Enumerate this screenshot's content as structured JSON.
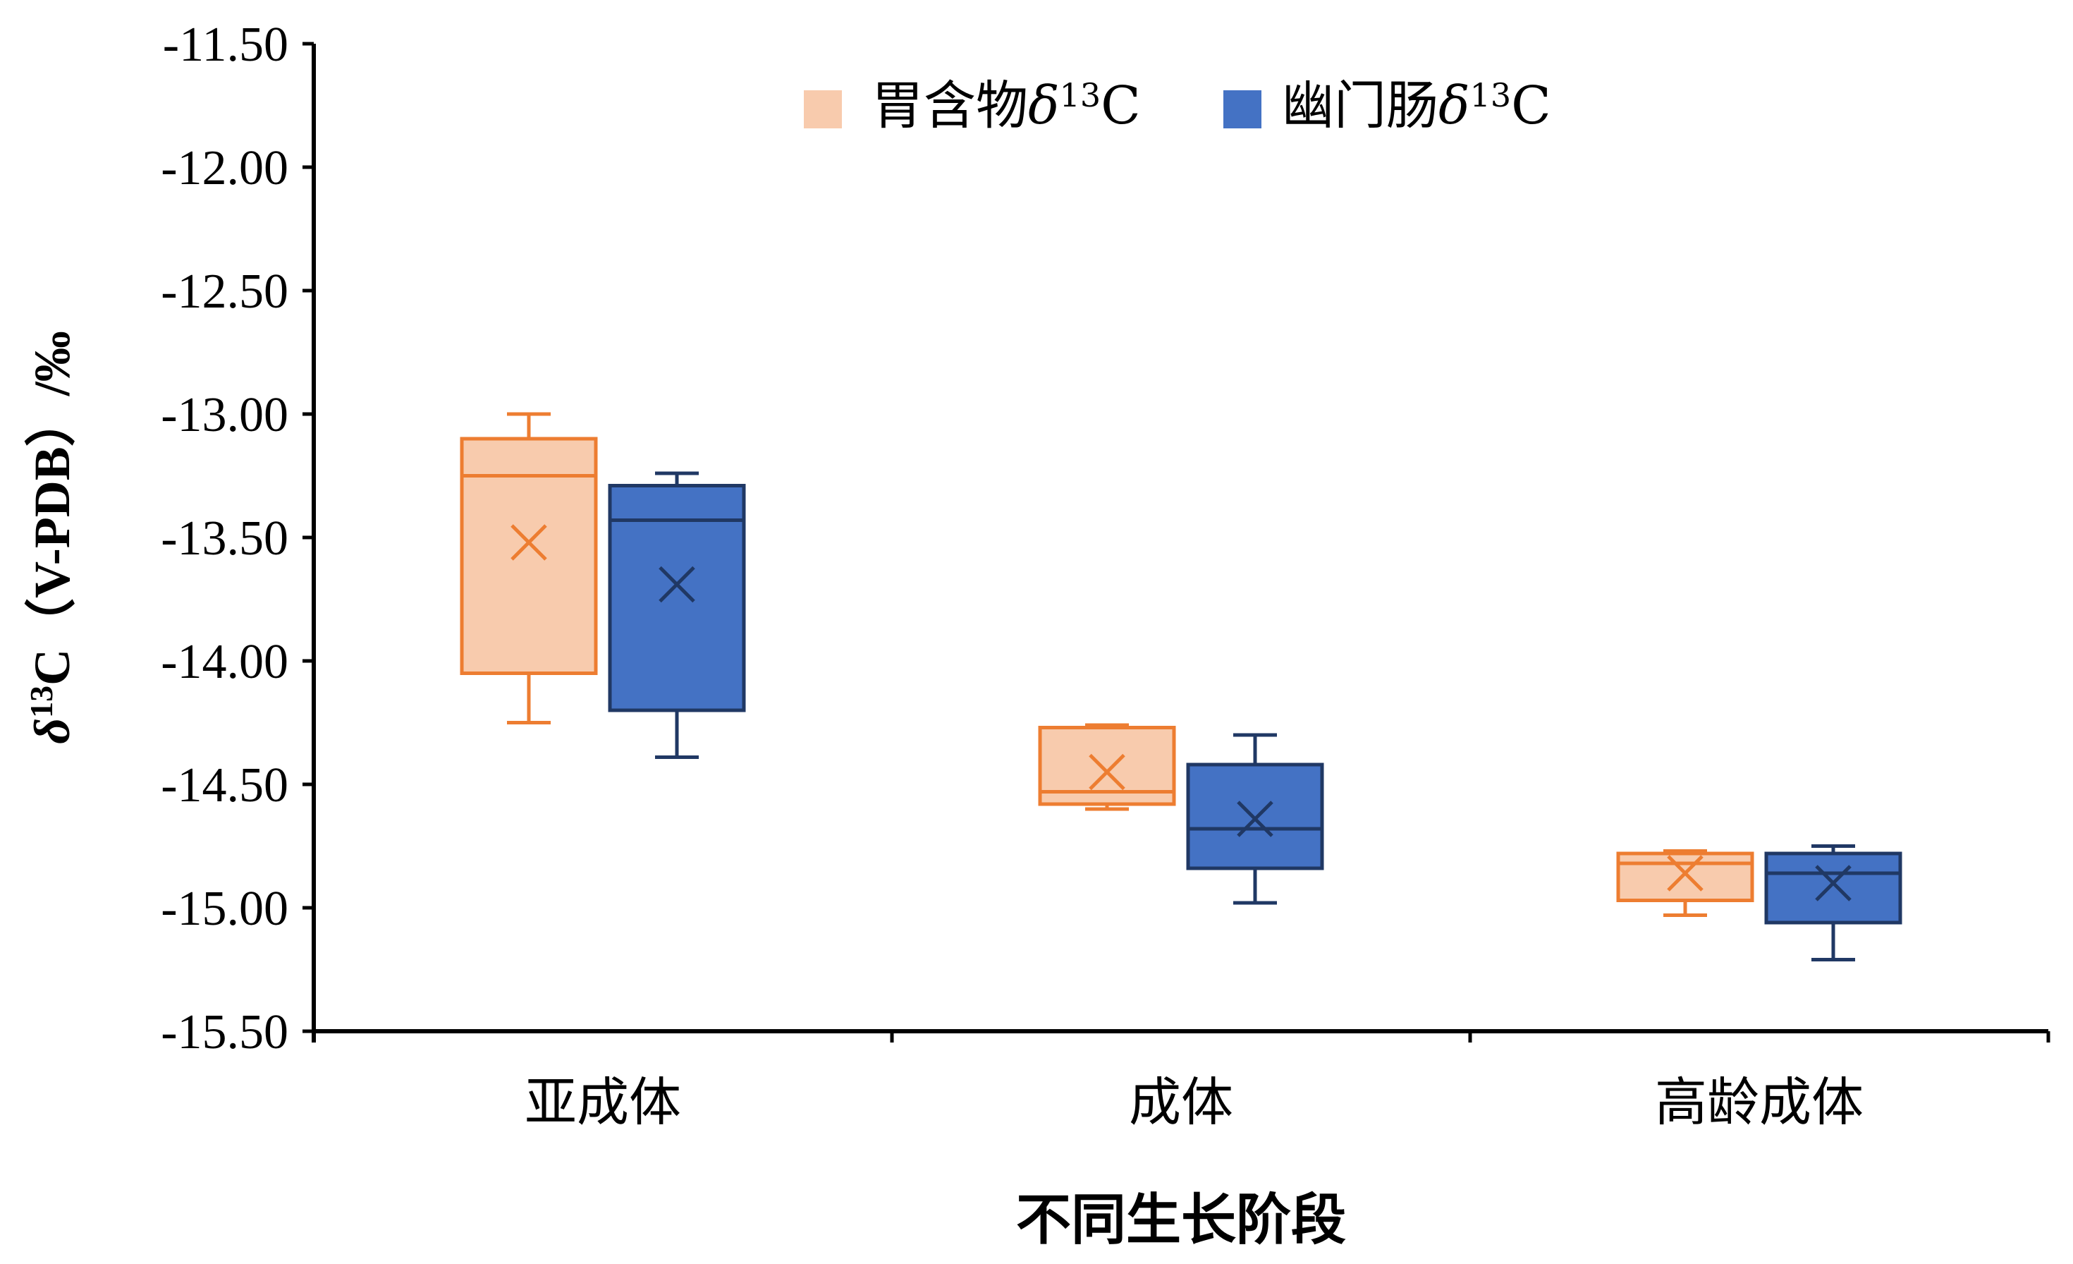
{
  "chart_data": {
    "type": "boxplot",
    "xlabel": "不同生长阶段",
    "ylabel": {
      "prefix": "δ",
      "sup": "13",
      "rest": "C（V-PDB）/‰"
    },
    "ylim": [
      -15.5,
      -11.5
    ],
    "ytick_values": [
      -11.5,
      -12.0,
      -12.5,
      -13.0,
      -13.5,
      -14.0,
      -14.5,
      -15.0,
      -15.5
    ],
    "ytick_labels": [
      "-11.50",
      "-12.00",
      "-12.50",
      "-13.00",
      "-13.50",
      "-14.00",
      "-14.50",
      "-15.00",
      "-15.50"
    ],
    "categories": [
      "亚成体",
      "成体",
      "高龄成体"
    ],
    "grid": false,
    "legend_position": "top-center",
    "series": [
      {
        "name": "胃含物δ13C",
        "label_main": "胃含物",
        "label_delta": "δ",
        "label_sup": "13",
        "label_tail": "C",
        "fill": "#f8cbad",
        "stroke": "#ed7d31",
        "boxes": [
          {
            "min": -14.25,
            "q1": -14.05,
            "median": -13.25,
            "q3": -13.1,
            "max": -13.0,
            "mean": -13.52
          },
          {
            "min": -14.6,
            "q1": -14.58,
            "median": -14.53,
            "q3": -14.27,
            "max": -14.26,
            "mean": -14.45
          },
          {
            "min": -15.03,
            "q1": -14.97,
            "median": -14.82,
            "q3": -14.78,
            "max": -14.77,
            "mean": -14.86
          }
        ]
      },
      {
        "name": "幽门肠δ13C",
        "label_main": "幽门肠",
        "label_delta": "δ",
        "label_sup": "13",
        "label_tail": "C",
        "fill": "#4472c4",
        "stroke": "#203864",
        "boxes": [
          {
            "min": -14.39,
            "q1": -14.2,
            "median": -13.43,
            "q3": -13.29,
            "max": -13.24,
            "mean": -13.69
          },
          {
            "min": -14.98,
            "q1": -14.84,
            "median": -14.68,
            "q3": -14.42,
            "max": -14.3,
            "mean": -14.64
          },
          {
            "min": -15.21,
            "q1": -15.06,
            "median": -14.86,
            "q3": -14.78,
            "max": -14.75,
            "mean": -14.9
          }
        ]
      }
    ]
  }
}
